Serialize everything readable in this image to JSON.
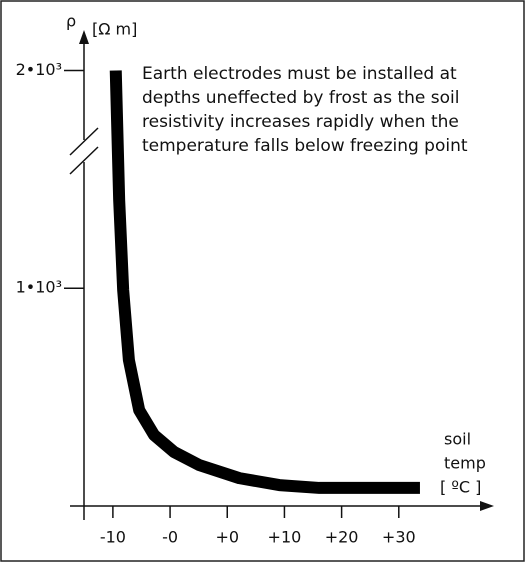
{
  "chart_data": {
    "type": "line",
    "y_label": "ρ",
    "y_unit": "[Ω m]",
    "x_label_lines": [
      "soil",
      "temp",
      "[ ºC ]"
    ],
    "annotation_lines": [
      "Earth electrodes must be installed at",
      "depths uneffected by frost as the soil",
      "resistivity increases rapidly when the",
      "temperature falls below freezing point"
    ],
    "x": [
      -9.5,
      -8.9,
      -8.2,
      -7.2,
      -5.4,
      -2.8,
      0.7,
      5.1,
      12.1,
      19.1,
      26.1,
      43.7
    ],
    "series": [
      {
        "color": "#000000",
        "values": [
          2000,
          1404,
          991,
          670,
          440,
          326,
          248,
          188,
          128,
          96,
          83,
          83
        ]
      }
    ],
    "xlim": [
      -17.5,
      56.3
    ],
    "ylim": [
      0,
      2140
    ],
    "xticks": [
      {
        "value": -10,
        "label": "-10"
      },
      {
        "value": 0,
        "label": "-0"
      },
      {
        "value": 10,
        "label": "+0"
      },
      {
        "value": 20,
        "label": "+10"
      },
      {
        "value": 30,
        "label": "+20"
      },
      {
        "value": 40,
        "label": "+30"
      }
    ],
    "yticks": [
      {
        "value": 1000,
        "label": "1•10³"
      },
      {
        "value": 2000,
        "label": "2•10³"
      }
    ]
  }
}
